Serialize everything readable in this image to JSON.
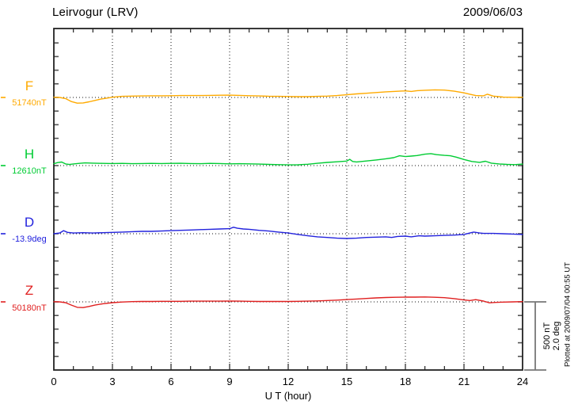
{
  "header": {
    "title": "Leirvogur (LRV)",
    "date": "2009/06/03"
  },
  "xaxis": {
    "label": "U T (hour)",
    "tick_labels": [
      "0",
      "3",
      "6",
      "9",
      "12",
      "15",
      "18",
      "21",
      "24"
    ]
  },
  "scale_bar": {
    "line1": "500 nT",
    "line2": "2.0 deg"
  },
  "watermark": "Plotted at 2009/07/04 00:55 UT",
  "chart_data": {
    "type": "line",
    "title": "Leirvogur (LRV)",
    "subtitle": "2009/06/03",
    "xlabel": "U T (hour)",
    "xlim": [
      0,
      24
    ],
    "x_major_ticks": [
      0,
      3,
      6,
      9,
      12,
      15,
      18,
      21,
      24
    ],
    "x_minor_tick_step_hours": 1,
    "grid": "vertical dotted lines every 3 hours; dotted horizontal baseline per trace",
    "scale_division": {
      "nT": 500,
      "deg": 2.0
    },
    "axis_color": "#222222",
    "grid_color": "#111111",
    "scalebar_color": "#777777",
    "series": [
      {
        "name": "F",
        "baseline_label": "51740nT",
        "baseline_value": 51740,
        "unit": "nT",
        "color": "#FFAA00",
        "points": [
          [
            0,
            2
          ],
          [
            0.3,
            0
          ],
          [
            0.6,
            -8
          ],
          [
            0.9,
            -30
          ],
          [
            1.2,
            -42
          ],
          [
            1.5,
            -40
          ],
          [
            1.8,
            -32
          ],
          [
            2.1,
            -22
          ],
          [
            2.4,
            -12
          ],
          [
            2.7,
            -5
          ],
          [
            3,
            2
          ],
          [
            3.5,
            8
          ],
          [
            4,
            10
          ],
          [
            4.5,
            11
          ],
          [
            5,
            12
          ],
          [
            5.5,
            12
          ],
          [
            6,
            13
          ],
          [
            6.5,
            14
          ],
          [
            7,
            14
          ],
          [
            7.5,
            14
          ],
          [
            8,
            15
          ],
          [
            8.5,
            16
          ],
          [
            9,
            17
          ],
          [
            9.5,
            15
          ],
          [
            10,
            13
          ],
          [
            10.5,
            11
          ],
          [
            11,
            9
          ],
          [
            11.5,
            8
          ],
          [
            12,
            7
          ],
          [
            12.5,
            6
          ],
          [
            13,
            6
          ],
          [
            13.5,
            8
          ],
          [
            14,
            10
          ],
          [
            14.5,
            14
          ],
          [
            15,
            20
          ],
          [
            15.5,
            26
          ],
          [
            16,
            31
          ],
          [
            16.5,
            36
          ],
          [
            17,
            41
          ],
          [
            17.5,
            45
          ],
          [
            18,
            48
          ],
          [
            18.3,
            44
          ],
          [
            18.6,
            50
          ],
          [
            19,
            53
          ],
          [
            19.5,
            56
          ],
          [
            20,
            54
          ],
          [
            20.5,
            46
          ],
          [
            21,
            34
          ],
          [
            21.3,
            24
          ],
          [
            21.6,
            14
          ],
          [
            22,
            12
          ],
          [
            22.2,
            24
          ],
          [
            22.5,
            10
          ],
          [
            23,
            3
          ],
          [
            23.5,
            1
          ],
          [
            24,
            1
          ]
        ]
      },
      {
        "name": "H",
        "baseline_label": "12610nT",
        "baseline_value": 12610,
        "unit": "nT",
        "color": "#00CC33",
        "points": [
          [
            0,
            14
          ],
          [
            0.2,
            22
          ],
          [
            0.4,
            26
          ],
          [
            0.6,
            12
          ],
          [
            0.8,
            8
          ],
          [
            1,
            12
          ],
          [
            1.3,
            16
          ],
          [
            1.6,
            20
          ],
          [
            2,
            18
          ],
          [
            2.5,
            16
          ],
          [
            3,
            15
          ],
          [
            3.5,
            16
          ],
          [
            4,
            14
          ],
          [
            4.5,
            15
          ],
          [
            5,
            16
          ],
          [
            5.5,
            15
          ],
          [
            6,
            16
          ],
          [
            6.5,
            17
          ],
          [
            7,
            15
          ],
          [
            7.5,
            14
          ],
          [
            8,
            16
          ],
          [
            8.5,
            15
          ],
          [
            9,
            13
          ],
          [
            9.5,
            14
          ],
          [
            10,
            13
          ],
          [
            10.5,
            11
          ],
          [
            11,
            9
          ],
          [
            11.5,
            7
          ],
          [
            12,
            5
          ],
          [
            12.5,
            6
          ],
          [
            13,
            10
          ],
          [
            13.5,
            17
          ],
          [
            14,
            23
          ],
          [
            14.5,
            28
          ],
          [
            15,
            33
          ],
          [
            15.15,
            46
          ],
          [
            15.3,
            30
          ],
          [
            15.5,
            27
          ],
          [
            16,
            34
          ],
          [
            16.5,
            41
          ],
          [
            17,
            50
          ],
          [
            17.4,
            58
          ],
          [
            17.7,
            72
          ],
          [
            18,
            66
          ],
          [
            18.3,
            70
          ],
          [
            18.6,
            74
          ],
          [
            19,
            84
          ],
          [
            19.3,
            88
          ],
          [
            19.6,
            80
          ],
          [
            20,
            75
          ],
          [
            20.3,
            72
          ],
          [
            20.6,
            62
          ],
          [
            21,
            45
          ],
          [
            21.4,
            30
          ],
          [
            21.8,
            24
          ],
          [
            22.1,
            32
          ],
          [
            22.4,
            18
          ],
          [
            22.8,
            12
          ],
          [
            23.2,
            9
          ],
          [
            23.6,
            7
          ],
          [
            24,
            11
          ]
        ]
      },
      {
        "name": "D",
        "baseline_label": "-13.9deg",
        "baseline_value": -13.9,
        "unit": "deg",
        "color": "#2222DD",
        "points": [
          [
            0,
            0.0
          ],
          [
            0.3,
            0.02
          ],
          [
            0.5,
            0.09
          ],
          [
            0.7,
            0.04
          ],
          [
            1,
            0.02
          ],
          [
            1.5,
            0.03
          ],
          [
            2,
            0.02
          ],
          [
            2.5,
            0.03
          ],
          [
            3,
            0.04
          ],
          [
            3.5,
            0.05
          ],
          [
            4,
            0.06
          ],
          [
            4.5,
            0.07
          ],
          [
            5,
            0.07
          ],
          [
            5.5,
            0.08
          ],
          [
            6,
            0.09
          ],
          [
            6.5,
            0.1
          ],
          [
            7,
            0.11
          ],
          [
            7.5,
            0.12
          ],
          [
            8,
            0.13
          ],
          [
            8.5,
            0.14
          ],
          [
            9,
            0.15
          ],
          [
            9.2,
            0.19
          ],
          [
            9.4,
            0.16
          ],
          [
            9.7,
            0.14
          ],
          [
            10,
            0.13
          ],
          [
            10.5,
            0.1
          ],
          [
            11,
            0.08
          ],
          [
            11.5,
            0.05
          ],
          [
            12,
            0.02
          ],
          [
            12.5,
            -0.02
          ],
          [
            13,
            -0.06
          ],
          [
            13.5,
            -0.09
          ],
          [
            14,
            -0.11
          ],
          [
            14.5,
            -0.13
          ],
          [
            15,
            -0.14
          ],
          [
            15.5,
            -0.13
          ],
          [
            16,
            -0.11
          ],
          [
            16.5,
            -0.1
          ],
          [
            17,
            -0.09
          ],
          [
            17.3,
            -0.11
          ],
          [
            17.6,
            -0.08
          ],
          [
            18,
            -0.07
          ],
          [
            18.3,
            -0.09
          ],
          [
            18.7,
            -0.06
          ],
          [
            19,
            -0.07
          ],
          [
            19.5,
            -0.06
          ],
          [
            20,
            -0.05
          ],
          [
            20.5,
            -0.04
          ],
          [
            21,
            -0.02
          ],
          [
            21.3,
            0.02
          ],
          [
            21.5,
            0.05
          ],
          [
            21.8,
            0.02
          ],
          [
            22,
            0.01
          ],
          [
            22.5,
            0.01
          ],
          [
            23,
            0.0
          ],
          [
            23.5,
            -0.01
          ],
          [
            24,
            -0.02
          ]
        ]
      },
      {
        "name": "Z",
        "baseline_label": "50180nT",
        "baseline_value": 50180,
        "unit": "nT",
        "color": "#E02020",
        "points": [
          [
            0,
            1
          ],
          [
            0.3,
            0
          ],
          [
            0.6,
            -6
          ],
          [
            0.9,
            -24
          ],
          [
            1.2,
            -40
          ],
          [
            1.5,
            -42
          ],
          [
            1.8,
            -34
          ],
          [
            2.1,
            -24
          ],
          [
            2.5,
            -14
          ],
          [
            3,
            -6
          ],
          [
            3.5,
            -1
          ],
          [
            4,
            2
          ],
          [
            4.5,
            3
          ],
          [
            5,
            3
          ],
          [
            5.5,
            4
          ],
          [
            6,
            4
          ],
          [
            6.5,
            4
          ],
          [
            7,
            5
          ],
          [
            7.5,
            5
          ],
          [
            8,
            5
          ],
          [
            8.5,
            5
          ],
          [
            9,
            6
          ],
          [
            9.5,
            5
          ],
          [
            10,
            4
          ],
          [
            10.5,
            3
          ],
          [
            11,
            3
          ],
          [
            11.5,
            3
          ],
          [
            12,
            3
          ],
          [
            12.5,
            4
          ],
          [
            13,
            5
          ],
          [
            13.5,
            7
          ],
          [
            14,
            10
          ],
          [
            14.5,
            13
          ],
          [
            15,
            17
          ],
          [
            15.5,
            21
          ],
          [
            16,
            25
          ],
          [
            16.5,
            29
          ],
          [
            17,
            32
          ],
          [
            17.5,
            34
          ],
          [
            18,
            35
          ],
          [
            18.5,
            35
          ],
          [
            19,
            36
          ],
          [
            19.5,
            34
          ],
          [
            20,
            31
          ],
          [
            20.5,
            24
          ],
          [
            21,
            14
          ],
          [
            21.3,
            10
          ],
          [
            21.6,
            16
          ],
          [
            22,
            6
          ],
          [
            22.3,
            -7
          ],
          [
            22.6,
            -4
          ],
          [
            23,
            -2
          ],
          [
            23.5,
            0
          ],
          [
            24,
            2
          ]
        ]
      }
    ]
  }
}
